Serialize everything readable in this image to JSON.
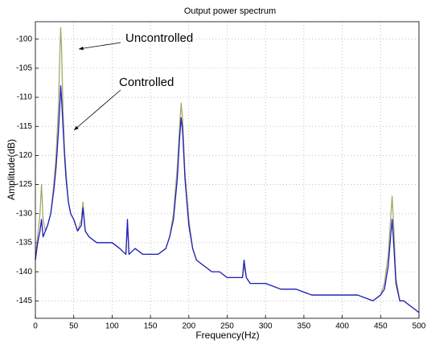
{
  "chart_data": {
    "type": "line",
    "title": "Output power spectrum",
    "x_label": "Frequency(Hz)",
    "y_label": "Amplitude(dB)",
    "x": [
      0,
      3,
      6,
      8,
      10,
      13,
      16,
      20,
      24,
      27,
      30,
      32,
      33,
      34,
      36,
      38,
      40,
      43,
      46,
      50,
      55,
      60,
      62,
      65,
      70,
      80,
      90,
      100,
      110,
      118,
      120,
      122,
      130,
      140,
      150,
      160,
      170,
      175,
      180,
      185,
      188,
      190,
      192,
      195,
      200,
      205,
      210,
      220,
      230,
      240,
      250,
      260,
      270,
      272,
      275,
      280,
      290,
      300,
      320,
      340,
      360,
      380,
      400,
      420,
      440,
      450,
      455,
      460,
      463,
      465,
      467,
      470,
      475,
      480,
      490,
      500
    ],
    "series": [
      {
        "name": "Uncontrolled",
        "color": "#a6a86a",
        "values": [
          -137,
          -134,
          -130,
          -125,
          -131,
          -133,
          -132,
          -130,
          -125,
          -120,
          -112,
          -102,
          -98,
          -101,
          -112,
          -119,
          -123,
          -128,
          -130,
          -131,
          -133,
          -131,
          -128,
          -133,
          -134,
          -135,
          -135,
          -135,
          -136,
          -137,
          -132,
          -137,
          -136,
          -137,
          -137,
          -137,
          -136,
          -134,
          -130,
          -122,
          -115,
          -111,
          -114,
          -123,
          -131,
          -136,
          -138,
          -139,
          -140,
          -140,
          -141,
          -141,
          -141,
          -139,
          -141,
          -142,
          -142,
          -142,
          -143,
          -143,
          -144,
          -144,
          -144,
          -144,
          -145,
          -144,
          -142,
          -137,
          -131,
          -127,
          -132,
          -141,
          -145,
          -145,
          -146,
          -147
        ]
      },
      {
        "name": "Controlled",
        "color": "#1f1fc0",
        "values": [
          -138,
          -135,
          -133,
          -131,
          -134,
          -133,
          -132,
          -130,
          -126,
          -122,
          -116,
          -111,
          -108,
          -110,
          -115,
          -120,
          -124,
          -128,
          -130,
          -131,
          -133,
          -132,
          -129,
          -133,
          -134,
          -135,
          -135,
          -135,
          -136,
          -137,
          -131,
          -137,
          -136,
          -137,
          -137,
          -137,
          -136,
          -134,
          -131,
          -124,
          -117,
          -113.5,
          -116,
          -124,
          -132,
          -136,
          -138,
          -139,
          -140,
          -140,
          -141,
          -141,
          -141,
          -138,
          -141,
          -142,
          -142,
          -142,
          -143,
          -143,
          -144,
          -144,
          -144,
          -144,
          -145,
          -144,
          -143,
          -139,
          -134,
          -131,
          -135,
          -142,
          -145,
          -145,
          -146,
          -147
        ]
      }
    ],
    "xlim": [
      0,
      500
    ],
    "xticks": [
      0,
      50,
      100,
      150,
      200,
      250,
      300,
      350,
      400,
      450,
      500
    ],
    "ylim": [
      -148,
      -97
    ],
    "yticks": [
      -100,
      -105,
      -110,
      -115,
      -120,
      -125,
      -130,
      -135,
      -140,
      -145
    ],
    "grid": true
  }
}
